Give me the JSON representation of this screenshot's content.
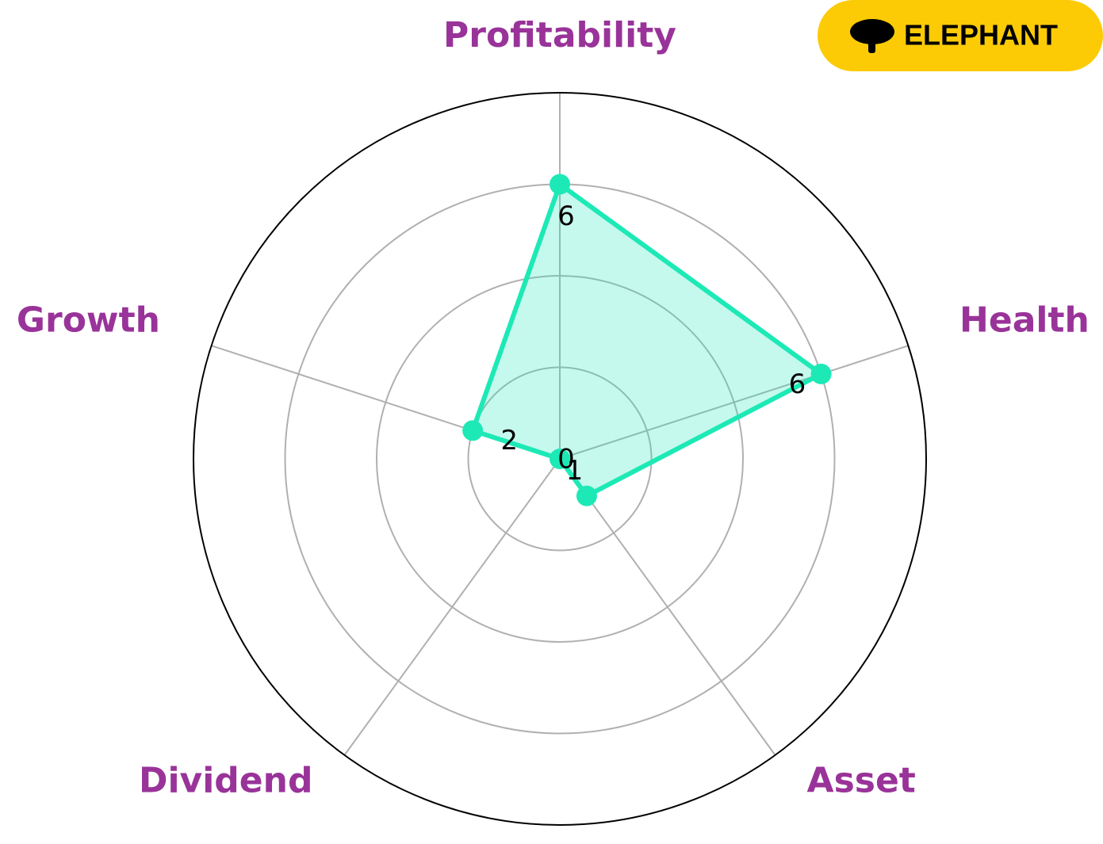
{
  "chart_data": {
    "type": "radar",
    "categories": [
      "Profitability",
      "Health",
      "Asset",
      "Dividend",
      "Growth"
    ],
    "values": [
      6,
      6,
      1,
      0,
      2
    ],
    "color": "#1de9b6",
    "label_color": "#993399",
    "ylim": [
      0,
      8
    ],
    "yticks": [
      2,
      4,
      6
    ],
    "grid": true
  },
  "logo": {
    "text": "ELEPHANT"
  }
}
